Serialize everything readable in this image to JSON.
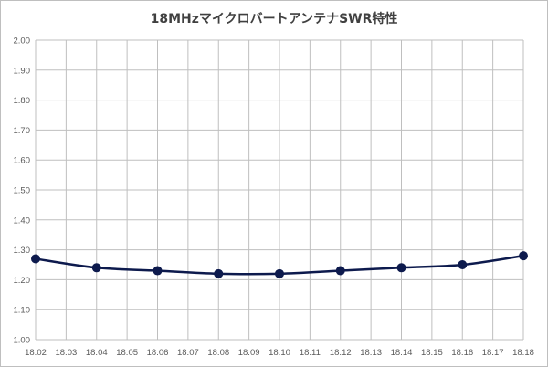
{
  "chart_data": {
    "type": "line",
    "title": "18MHzマイクロバートアンテナSWR特性",
    "xlabel": "",
    "ylabel": "",
    "x_ticks": [
      "18.02",
      "18.03",
      "18.04",
      "18.05",
      "18.06",
      "18.07",
      "18.08",
      "18.09",
      "18.10",
      "18.11",
      "18.12",
      "18.13",
      "18.14",
      "18.15",
      "18.16",
      "18.17",
      "18.18"
    ],
    "y_ticks": [
      "1.00",
      "1.10",
      "1.20",
      "1.30",
      "1.40",
      "1.50",
      "1.60",
      "1.70",
      "1.80",
      "1.90",
      "2.00"
    ],
    "xlim": [
      18.02,
      18.18
    ],
    "ylim": [
      1.0,
      2.0
    ],
    "grid": true,
    "legend": "none",
    "series": [
      {
        "color": "#0d1a4d",
        "x": [
          18.02,
          18.04,
          18.06,
          18.08,
          18.1,
          18.12,
          18.14,
          18.16,
          18.18
        ],
        "y": [
          1.27,
          1.24,
          1.23,
          1.22,
          1.22,
          1.23,
          1.24,
          1.25,
          1.28
        ]
      }
    ]
  }
}
